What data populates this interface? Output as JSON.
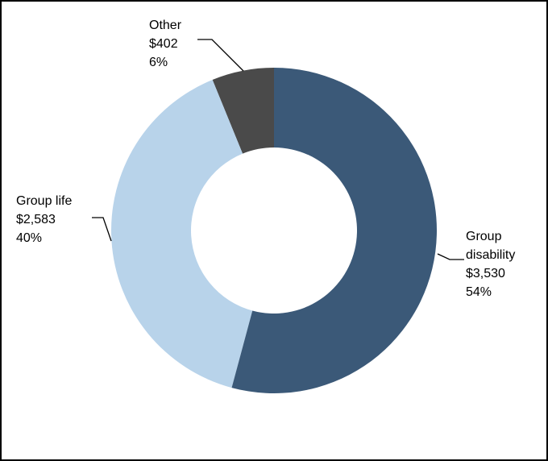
{
  "chart_data": {
    "type": "donut",
    "categories": [
      "Group disability",
      "Group life",
      "Other"
    ],
    "values": [
      3530,
      2583,
      402
    ],
    "value_labels": [
      "$3,530",
      "$2,583",
      "$402"
    ],
    "percent_labels": [
      "54%",
      "40%",
      "6%"
    ],
    "colors": [
      "#3b5978",
      "#b8d3ea",
      "#4a4a4a"
    ]
  }
}
